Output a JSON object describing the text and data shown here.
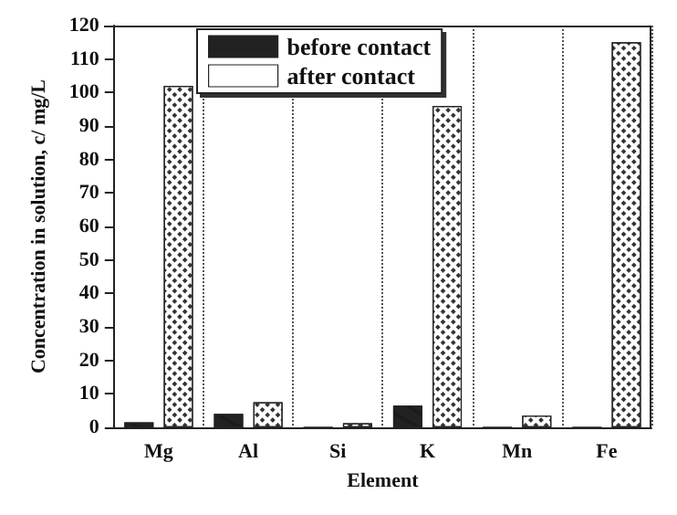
{
  "chart_data": {
    "type": "bar",
    "xlabel": "Element",
    "ylabel": "Concentration in solution, c/ mg/L",
    "categories": [
      "Mg",
      "Al",
      "Si",
      "K",
      "Mn",
      "Fe"
    ],
    "series": [
      {
        "name": "before contact",
        "color": "#222222",
        "values": [
          1.5,
          4,
          0,
          6.5,
          0,
          0
        ]
      },
      {
        "name": "after contact",
        "color": "#ffffff",
        "values": [
          102,
          7.5,
          1.2,
          96,
          3.5,
          115
        ]
      }
    ],
    "ylim": [
      0,
      120
    ],
    "yticks": [
      0,
      10,
      20,
      30,
      40,
      50,
      60,
      70,
      80,
      90,
      100,
      110,
      120
    ],
    "grid": "x",
    "legend": "top left"
  }
}
